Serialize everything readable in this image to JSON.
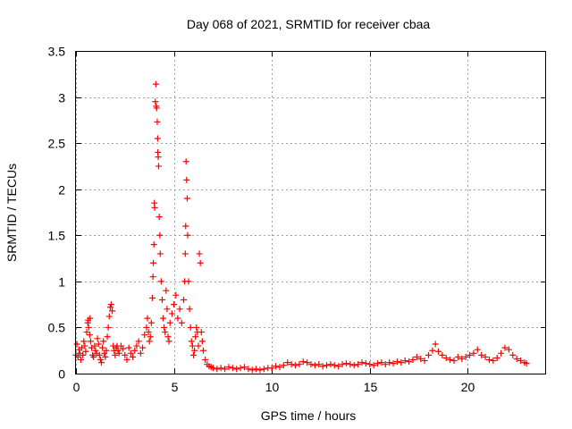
{
  "chart_data": {
    "type": "scatter",
    "title": "Day 068 of 2021, SRMTID for receiver cbaa",
    "xlabel": "GPS time / hours",
    "ylabel": "SRMTID / TECUs",
    "xlim": [
      0,
      24
    ],
    "ylim": [
      0,
      3.5
    ],
    "x_ticks": [
      0,
      5,
      10,
      15,
      20
    ],
    "x_tick_labels": [
      "0",
      "5",
      "10",
      "15",
      "20"
    ],
    "y_ticks": [
      0,
      0.5,
      1,
      1.5,
      2,
      2.5,
      3,
      3.5
    ],
    "y_tick_labels": [
      "0",
      "0.5",
      "1",
      "1.5",
      "2",
      "2.5",
      "3",
      "3.5"
    ],
    "grid": true,
    "marker": "+",
    "series": [
      {
        "name": "SRMTID",
        "color": "#ff0000",
        "points": [
          [
            0.0,
            0.2
          ],
          [
            0.05,
            0.32
          ],
          [
            0.1,
            0.18
          ],
          [
            0.15,
            0.26
          ],
          [
            0.2,
            0.22
          ],
          [
            0.25,
            0.15
          ],
          [
            0.3,
            0.28
          ],
          [
            0.35,
            0.2
          ],
          [
            0.4,
            0.35
          ],
          [
            0.45,
            0.3
          ],
          [
            0.5,
            0.24
          ],
          [
            0.55,
            0.45
          ],
          [
            0.6,
            0.55
          ],
          [
            0.62,
            0.58
          ],
          [
            0.65,
            0.5
          ],
          [
            0.7,
            0.42
          ],
          [
            0.72,
            0.6
          ],
          [
            0.75,
            0.35
          ],
          [
            0.8,
            0.28
          ],
          [
            0.85,
            0.2
          ],
          [
            0.9,
            0.18
          ],
          [
            0.95,
            0.3
          ],
          [
            1.0,
            0.25
          ],
          [
            1.05,
            0.22
          ],
          [
            1.1,
            0.38
          ],
          [
            1.15,
            0.32
          ],
          [
            1.2,
            0.2
          ],
          [
            1.25,
            0.15
          ],
          [
            1.3,
            0.12
          ],
          [
            1.35,
            0.28
          ],
          [
            1.4,
            0.35
          ],
          [
            1.45,
            0.22
          ],
          [
            1.5,
            0.18
          ],
          [
            1.55,
            0.25
          ],
          [
            1.6,
            0.4
          ],
          [
            1.65,
            0.5
          ],
          [
            1.7,
            0.62
          ],
          [
            1.75,
            0.72
          ],
          [
            1.8,
            0.75
          ],
          [
            1.85,
            0.68
          ],
          [
            1.9,
            0.3
          ],
          [
            1.95,
            0.25
          ],
          [
            2.0,
            0.2
          ],
          [
            2.05,
            0.28
          ],
          [
            2.1,
            0.3
          ],
          [
            2.15,
            0.25
          ],
          [
            2.2,
            0.22
          ],
          [
            2.3,
            0.3
          ],
          [
            2.4,
            0.27
          ],
          [
            2.5,
            0.2
          ],
          [
            2.6,
            0.15
          ],
          [
            2.7,
            0.28
          ],
          [
            2.8,
            0.22
          ],
          [
            2.9,
            0.18
          ],
          [
            3.0,
            0.25
          ],
          [
            3.1,
            0.3
          ],
          [
            3.2,
            0.35
          ],
          [
            3.3,
            0.22
          ],
          [
            3.4,
            0.28
          ],
          [
            3.5,
            0.42
          ],
          [
            3.6,
            0.5
          ],
          [
            3.65,
            0.6
          ],
          [
            3.7,
            0.45
          ],
          [
            3.75,
            0.35
          ],
          [
            3.8,
            0.4
          ],
          [
            3.85,
            0.55
          ],
          [
            3.9,
            0.82
          ],
          [
            3.93,
            1.05
          ],
          [
            3.95,
            1.2
          ],
          [
            3.98,
            1.4
          ],
          [
            4.0,
            1.85
          ],
          [
            4.02,
            1.8
          ],
          [
            4.05,
            2.95
          ],
          [
            4.08,
            3.14
          ],
          [
            4.1,
            2.9
          ],
          [
            4.12,
            2.88
          ],
          [
            4.15,
            2.73
          ],
          [
            4.17,
            2.55
          ],
          [
            4.18,
            2.4
          ],
          [
            4.2,
            2.35
          ],
          [
            4.22,
            2.25
          ],
          [
            4.25,
            1.7
          ],
          [
            4.28,
            1.5
          ],
          [
            4.3,
            1.3
          ],
          [
            4.35,
            1.0
          ],
          [
            4.4,
            0.8
          ],
          [
            4.45,
            0.6
          ],
          [
            4.5,
            0.5
          ],
          [
            4.55,
            0.45
          ],
          [
            4.6,
            0.9
          ],
          [
            4.65,
            0.7
          ],
          [
            4.7,
            0.4
          ],
          [
            4.75,
            0.35
          ],
          [
            4.8,
            0.55
          ],
          [
            4.9,
            0.65
          ],
          [
            5.0,
            0.75
          ],
          [
            5.1,
            0.85
          ],
          [
            5.2,
            0.6
          ],
          [
            5.3,
            0.7
          ],
          [
            5.4,
            0.55
          ],
          [
            5.5,
            0.8
          ],
          [
            5.55,
            1.0
          ],
          [
            5.58,
            1.3
          ],
          [
            5.6,
            1.6
          ],
          [
            5.62,
            2.3
          ],
          [
            5.65,
            2.1
          ],
          [
            5.68,
            1.9
          ],
          [
            5.7,
            1.5
          ],
          [
            5.75,
            1.0
          ],
          [
            5.8,
            0.7
          ],
          [
            5.85,
            0.5
          ],
          [
            5.9,
            0.35
          ],
          [
            5.95,
            0.3
          ],
          [
            6.0,
            0.2
          ],
          [
            6.05,
            0.25
          ],
          [
            6.1,
            0.4
          ],
          [
            6.15,
            0.5
          ],
          [
            6.2,
            0.45
          ],
          [
            6.25,
            0.3
          ],
          [
            6.3,
            1.3
          ],
          [
            6.35,
            1.2
          ],
          [
            6.4,
            0.45
          ],
          [
            6.45,
            0.35
          ],
          [
            6.5,
            0.25
          ],
          [
            6.6,
            0.15
          ],
          [
            6.7,
            0.1
          ],
          [
            6.8,
            0.08
          ],
          [
            6.9,
            0.07
          ],
          [
            7.0,
            0.06
          ],
          [
            7.2,
            0.05
          ],
          [
            7.4,
            0.06
          ],
          [
            7.6,
            0.05
          ],
          [
            7.8,
            0.07
          ],
          [
            8.0,
            0.06
          ],
          [
            8.2,
            0.05
          ],
          [
            8.4,
            0.06
          ],
          [
            8.6,
            0.07
          ],
          [
            8.8,
            0.05
          ],
          [
            9.0,
            0.04
          ],
          [
            9.2,
            0.05
          ],
          [
            9.4,
            0.04
          ],
          [
            9.6,
            0.05
          ],
          [
            9.8,
            0.06
          ],
          [
            10.0,
            0.06
          ],
          [
            10.2,
            0.08
          ],
          [
            10.4,
            0.07
          ],
          [
            10.6,
            0.09
          ],
          [
            10.8,
            0.12
          ],
          [
            11.0,
            0.1
          ],
          [
            11.2,
            0.09
          ],
          [
            11.4,
            0.1
          ],
          [
            11.6,
            0.13
          ],
          [
            11.8,
            0.12
          ],
          [
            12.0,
            0.1
          ],
          [
            12.2,
            0.09
          ],
          [
            12.4,
            0.1
          ],
          [
            12.6,
            0.08
          ],
          [
            12.8,
            0.09
          ],
          [
            13.0,
            0.1
          ],
          [
            13.2,
            0.09
          ],
          [
            13.4,
            0.08
          ],
          [
            13.6,
            0.1
          ],
          [
            13.8,
            0.11
          ],
          [
            14.0,
            0.1
          ],
          [
            14.2,
            0.09
          ],
          [
            14.4,
            0.1
          ],
          [
            14.6,
            0.12
          ],
          [
            14.8,
            0.11
          ],
          [
            15.0,
            0.1
          ],
          [
            15.2,
            0.09
          ],
          [
            15.4,
            0.11
          ],
          [
            15.6,
            0.12
          ],
          [
            15.8,
            0.1
          ],
          [
            16.0,
            0.12
          ],
          [
            16.2,
            0.11
          ],
          [
            16.4,
            0.13
          ],
          [
            16.6,
            0.12
          ],
          [
            16.8,
            0.14
          ],
          [
            17.0,
            0.13
          ],
          [
            17.2,
            0.15
          ],
          [
            17.4,
            0.18
          ],
          [
            17.6,
            0.16
          ],
          [
            17.8,
            0.14
          ],
          [
            18.0,
            0.2
          ],
          [
            18.2,
            0.25
          ],
          [
            18.35,
            0.32
          ],
          [
            18.5,
            0.24
          ],
          [
            18.7,
            0.2
          ],
          [
            18.9,
            0.17
          ],
          [
            19.1,
            0.15
          ],
          [
            19.3,
            0.14
          ],
          [
            19.5,
            0.18
          ],
          [
            19.7,
            0.16
          ],
          [
            19.9,
            0.18
          ],
          [
            20.1,
            0.2
          ],
          [
            20.3,
            0.22
          ],
          [
            20.5,
            0.26
          ],
          [
            20.7,
            0.2
          ],
          [
            20.9,
            0.18
          ],
          [
            21.1,
            0.15
          ],
          [
            21.3,
            0.14
          ],
          [
            21.5,
            0.17
          ],
          [
            21.7,
            0.22
          ],
          [
            21.9,
            0.28
          ],
          [
            22.1,
            0.26
          ],
          [
            22.3,
            0.2
          ],
          [
            22.5,
            0.16
          ],
          [
            22.7,
            0.14
          ],
          [
            22.9,
            0.12
          ],
          [
            23.0,
            0.11
          ]
        ]
      }
    ]
  }
}
